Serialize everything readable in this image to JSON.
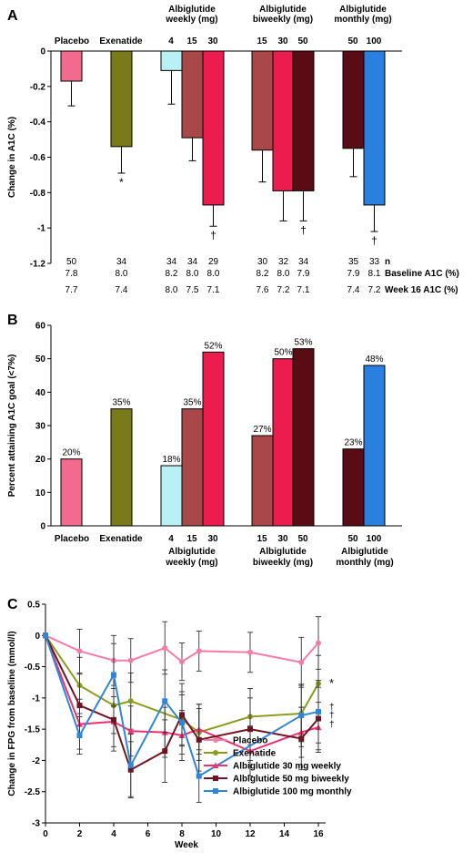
{
  "colors": {
    "placebo": "#f26b8f",
    "exenatide": "#7a7a1a",
    "alb4": "#b8f0f4",
    "alb15": "#a84848",
    "alb30": "#ec1c4e",
    "alb50": "#5a0c14",
    "alb100": "#2a80e0",
    "placebo_line": "#f27fa3",
    "exenatide_line": "#8c9a1e",
    "alb30_line": "#e8336e",
    "alb50_line": "#6e1420",
    "alb100_line": "#2f86d8"
  },
  "chart_data": [
    {
      "type": "bar",
      "panel": "A",
      "ylabel": "Change in A1C (%)",
      "ylim": [
        -1.2,
        0
      ],
      "yticks": [
        "0",
        "-0.2",
        "-0.4",
        "-0.6",
        "-0.8",
        "-1",
        "-1.2"
      ],
      "group_headers": [
        "Placebo",
        "Exenatide",
        "Albiglutide weekly (mg)",
        "Albiglutide biweekly (mg)",
        "Albiglutide monthly (mg)"
      ],
      "dose_labels": [
        "4",
        "15",
        "30",
        "15",
        "30",
        "50",
        "50",
        "100"
      ],
      "bars": [
        {
          "value": -0.17,
          "error": 0.14,
          "mark": "",
          "n": "50",
          "baseline": "7.8",
          "week16": "7.7"
        },
        {
          "value": -0.54,
          "error": 0.15,
          "mark": "*",
          "n": "34",
          "baseline": "8.0",
          "week16": "7.4"
        },
        {
          "value": -0.11,
          "error": 0.19,
          "mark": "",
          "n": "34",
          "baseline": "8.2",
          "week16": "8.0"
        },
        {
          "value": -0.49,
          "error": 0.13,
          "mark": "",
          "n": "34",
          "baseline": "8.0",
          "week16": "7.5"
        },
        {
          "value": -0.87,
          "error": 0.12,
          "mark": "†",
          "n": "29",
          "baseline": "8.0",
          "week16": "7.1"
        },
        {
          "value": -0.56,
          "error": 0.18,
          "mark": "",
          "n": "30",
          "baseline": "8.2",
          "week16": "7.6"
        },
        {
          "value": -0.79,
          "error": 0.17,
          "mark": "",
          "n": "32",
          "baseline": "8.0",
          "week16": "7.2"
        },
        {
          "value": -0.79,
          "error": 0.17,
          "mark": "†",
          "n": "34",
          "baseline": "7.9",
          "week16": "7.1"
        },
        {
          "value": -0.55,
          "error": 0.16,
          "mark": "",
          "n": "35",
          "baseline": "7.9",
          "week16": "7.4"
        },
        {
          "value": -0.87,
          "error": 0.15,
          "mark": "†",
          "n": "33",
          "baseline": "8.1",
          "week16": "7.2"
        }
      ],
      "row_labels": {
        "n": "n",
        "baseline": "Baseline A1C (%)",
        "week16": "Week 16 A1C (%)"
      }
    },
    {
      "type": "bar",
      "panel": "B",
      "ylabel": "Percent attaining A1C goal (<7%)",
      "ylim": [
        0,
        60
      ],
      "yticks": [
        "0",
        "10",
        "20",
        "30",
        "40",
        "50",
        "60"
      ],
      "group_headers": [
        "Placebo",
        "Exenatide",
        "Albiglutide weekly (mg)",
        "Albiglutide biweekly (mg)",
        "Albiglutide monthly (mg)"
      ],
      "dose_labels": [
        "4",
        "15",
        "30",
        "15",
        "30",
        "50",
        "50",
        "100"
      ],
      "bars": [
        {
          "value": 20,
          "label": "20%"
        },
        {
          "value": 35,
          "label": "35%"
        },
        {
          "value": 18,
          "label": "18%"
        },
        {
          "value": 35,
          "label": "35%"
        },
        {
          "value": 52,
          "label": "52%"
        },
        {
          "value": 27,
          "label": "27%"
        },
        {
          "value": 50,
          "label": "50%"
        },
        {
          "value": 53,
          "label": "53%"
        },
        {
          "value": 23,
          "label": "23%"
        },
        {
          "value": 48,
          "label": "48%"
        }
      ]
    },
    {
      "type": "line",
      "panel": "C",
      "xlabel": "Week",
      "ylabel": "Change in FPG from baseline (mmol/l)",
      "xlim": [
        0,
        16
      ],
      "ylim": [
        -3,
        0.5
      ],
      "xticks": [
        "0",
        "2",
        "4",
        "6",
        "8",
        "10",
        "12",
        "14",
        "16"
      ],
      "yticks": [
        "0.5",
        "0",
        "-0.5",
        "-1",
        "-1.5",
        "-2",
        "-2.5",
        "-3"
      ],
      "end_marks": [
        "*",
        "†",
        "†",
        "†"
      ],
      "series": [
        {
          "name": "Placebo",
          "x": [
            0,
            2,
            4,
            5,
            7,
            8,
            9,
            12,
            15,
            16
          ],
          "y": [
            0,
            -0.25,
            -0.4,
            -0.4,
            -0.2,
            -0.42,
            -0.25,
            -0.27,
            -0.43,
            -0.12
          ],
          "err": [
            0,
            0.35,
            0.4,
            0.35,
            0.42,
            0.3,
            0.32,
            0.32,
            0.4,
            0.42
          ]
        },
        {
          "name": "Exenatide",
          "x": [
            0,
            2,
            4,
            5,
            8,
            9,
            12,
            15,
            16
          ],
          "y": [
            0,
            -0.8,
            -1.12,
            -1.05,
            -1.35,
            -1.55,
            -1.3,
            -1.25,
            -0.77
          ],
          "err": [
            0,
            0.45,
            0.45,
            0.45,
            0.4,
            0.45,
            0.45,
            0.45,
            0.45
          ]
        },
        {
          "name": "Albiglutide 30 mg weekly",
          "x": [
            0,
            2,
            4,
            5,
            7,
            8,
            9,
            12,
            15,
            16
          ],
          "y": [
            0,
            -1.42,
            -1.38,
            -1.53,
            -1.55,
            -1.6,
            -1.5,
            -1.85,
            -1.55,
            -1.47
          ],
          "err": [
            0,
            0.4,
            0.4,
            0.4,
            0.4,
            0.4,
            0.4,
            0.4,
            0.4,
            0.4
          ]
        },
        {
          "name": "Albiglutide 50 mg biweekly",
          "x": [
            0,
            2,
            4,
            5,
            7,
            8,
            9,
            12,
            15,
            16
          ],
          "y": [
            0,
            -1.12,
            -1.35,
            -2.15,
            -1.85,
            -1.27,
            -1.67,
            -1.5,
            -1.65,
            -1.33
          ],
          "err": [
            0,
            0.5,
            0.5,
            0.45,
            0.5,
            0.5,
            0.5,
            0.5,
            0.5,
            0.5
          ]
        },
        {
          "name": "Albiglutide 100 mg monthly",
          "x": [
            0,
            2,
            4,
            5,
            7,
            8,
            9,
            15,
            16
          ],
          "y": [
            0,
            -1.6,
            -0.63,
            -2.08,
            -1.05,
            -1.4,
            -2.25,
            -1.28,
            -1.22
          ],
          "err": [
            0,
            0.3,
            0.5,
            0.5,
            0.5,
            0.5,
            0.42,
            0.5,
            0.5
          ]
        }
      ],
      "legend_position": "bottom-right"
    }
  ]
}
